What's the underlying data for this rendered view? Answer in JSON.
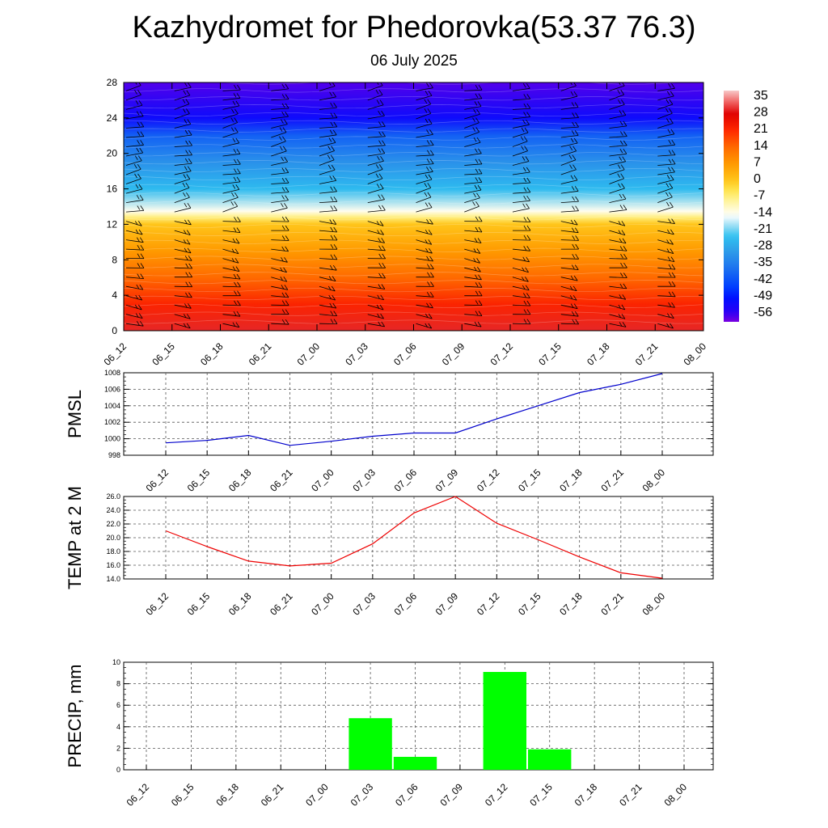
{
  "title": "Kazhydromet for Phedorovka(53.37 76.3)",
  "subtitle": "06 July 2025",
  "chart_data": [
    {
      "type": "heatmap",
      "x_ticks": [
        "06_12",
        "06_15",
        "06_18",
        "06_21",
        "07_00",
        "07_03",
        "07_06",
        "07_09",
        "07_12",
        "07_15",
        "07_18",
        "07_21",
        "08_00"
      ],
      "y_ticks": [
        "0",
        "4",
        "8",
        "12",
        "16",
        "20",
        "24",
        "28"
      ],
      "ylim": [
        0,
        28
      ],
      "colorbar_labels": [
        "35",
        "28",
        "21",
        "14",
        "7",
        "0",
        "-7",
        "-14",
        "-21",
        "-28",
        "-35",
        "-42",
        "-49",
        "-56"
      ],
      "colorbar_range": [
        -60,
        38
      ],
      "temperature_profile": [
        {
          "level": 0,
          "value": 30
        },
        {
          "level": 3,
          "value": 22
        },
        {
          "level": 6,
          "value": 14
        },
        {
          "level": 9,
          "value": 7
        },
        {
          "level": 12,
          "value": 0
        },
        {
          "level": 12.8,
          "value": -7
        },
        {
          "level": 13.5,
          "value": -14
        },
        {
          "level": 16,
          "value": -25
        },
        {
          "level": 19,
          "value": -32
        },
        {
          "level": 22,
          "value": -40
        },
        {
          "level": 24,
          "value": -52
        },
        {
          "level": 28,
          "value": -58
        }
      ],
      "wind_barbs": "shown"
    },
    {
      "type": "line",
      "ylabel": "PMSL",
      "x": [
        "06_12",
        "06_15",
        "06_18",
        "06_21",
        "07_00",
        "07_03",
        "07_06",
        "07_09",
        "07_12",
        "07_15",
        "07_18",
        "07_21",
        "08_00"
      ],
      "y_ticks": [
        "998",
        "1000",
        "1002",
        "1004",
        "1006",
        "1008"
      ],
      "ylim": [
        998,
        1008
      ],
      "color": "#0000cc",
      "values": [
        999.5,
        999.8,
        1000.4,
        999.2,
        999.7,
        1000.3,
        1000.7,
        1000.7,
        1002.4,
        1004.0,
        1005.6,
        1006.6,
        1007.9
      ]
    },
    {
      "type": "line",
      "ylabel": "TEMP at 2 M",
      "x": [
        "06_12",
        "06_15",
        "06_18",
        "06_21",
        "07_00",
        "07_03",
        "07_06",
        "07_09",
        "07_12",
        "07_15",
        "07_18",
        "07_21",
        "08_00"
      ],
      "y_ticks": [
        "14.0",
        "16.0",
        "18.0",
        "20.0",
        "22.0",
        "24.0",
        "26.0"
      ],
      "ylim": [
        14,
        26
      ],
      "color": "#ee0000",
      "values": [
        21.0,
        18.7,
        16.6,
        15.9,
        16.3,
        19.1,
        23.6,
        26.0,
        22.1,
        19.7,
        17.2,
        14.9,
        14.1
      ]
    },
    {
      "type": "bar",
      "ylabel": "PRECIP, mm",
      "categories": [
        "06_12",
        "06_15",
        "06_18",
        "06_21",
        "07_00",
        "07_03",
        "07_06",
        "07_09",
        "07_12",
        "07_15",
        "07_18",
        "07_21",
        "08_00"
      ],
      "y_ticks": [
        "0",
        "2",
        "4",
        "6",
        "8",
        "10"
      ],
      "ylim": [
        0,
        10
      ],
      "color": "#00ff00",
      "values": [
        0,
        0,
        0,
        0,
        0,
        4.8,
        1.2,
        0,
        9.1,
        1.9,
        0,
        0,
        0
      ]
    }
  ]
}
